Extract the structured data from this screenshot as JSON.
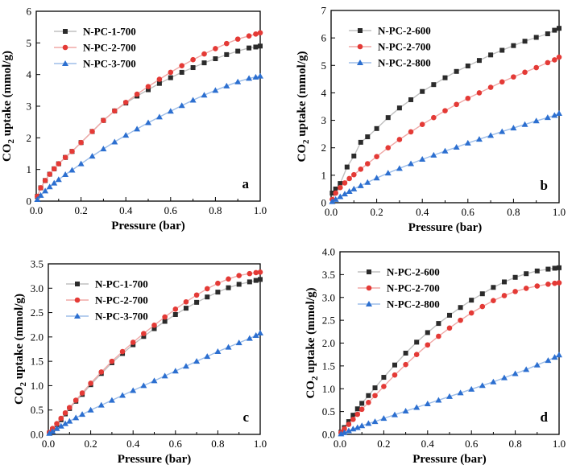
{
  "chart_data": [
    {
      "type": "line",
      "panel_label": "a",
      "xlabel": "Pressure (bar)",
      "ylabel_prefix": "CO",
      "ylabel_sub": "2",
      "ylabel_suffix": " uptake (mmol/g)",
      "xlim": [
        0,
        1
      ],
      "ylim": [
        0,
        6
      ],
      "xticks": [
        "0.0",
        "0.2",
        "0.4",
        "0.6",
        "0.8",
        "1.0"
      ],
      "yticks": [
        "0",
        "1",
        "2",
        "3",
        "4",
        "5",
        "6"
      ],
      "legend_position": "top-left",
      "series": [
        {
          "name": "N-PC-1-700",
          "marker": "square",
          "color": "#2b2b2b",
          "line": "#c0c0c0",
          "x": [
            0.005,
            0.02,
            0.04,
            0.06,
            0.08,
            0.1,
            0.13,
            0.16,
            0.2,
            0.25,
            0.3,
            0.35,
            0.4,
            0.45,
            0.5,
            0.55,
            0.6,
            0.65,
            0.7,
            0.75,
            0.8,
            0.85,
            0.9,
            0.95,
            0.98,
            1.0
          ],
          "y": [
            0.15,
            0.42,
            0.65,
            0.85,
            1.02,
            1.18,
            1.38,
            1.57,
            1.85,
            2.2,
            2.55,
            2.85,
            3.1,
            3.32,
            3.52,
            3.72,
            3.9,
            4.07,
            4.22,
            4.37,
            4.5,
            4.63,
            4.74,
            4.84,
            4.87,
            4.9
          ]
        },
        {
          "name": "N-PC-2-700",
          "marker": "circle",
          "color": "#e43a36",
          "line": "#f0a8a6",
          "x": [
            0.005,
            0.02,
            0.04,
            0.06,
            0.08,
            0.1,
            0.13,
            0.16,
            0.2,
            0.25,
            0.3,
            0.35,
            0.4,
            0.45,
            0.5,
            0.55,
            0.6,
            0.65,
            0.7,
            0.75,
            0.8,
            0.85,
            0.9,
            0.95,
            0.98,
            1.0
          ],
          "y": [
            0.15,
            0.42,
            0.65,
            0.85,
            1.02,
            1.18,
            1.38,
            1.57,
            1.85,
            2.2,
            2.55,
            2.85,
            3.12,
            3.38,
            3.62,
            3.85,
            4.07,
            4.28,
            4.47,
            4.65,
            4.82,
            4.98,
            5.12,
            5.22,
            5.28,
            5.32
          ]
        },
        {
          "name": "N-PC-3-700",
          "marker": "triangle",
          "color": "#2c6fd0",
          "line": "#9dbde8",
          "x": [
            0.005,
            0.02,
            0.04,
            0.06,
            0.08,
            0.1,
            0.13,
            0.16,
            0.2,
            0.25,
            0.3,
            0.35,
            0.4,
            0.45,
            0.5,
            0.55,
            0.6,
            0.65,
            0.7,
            0.75,
            0.8,
            0.85,
            0.9,
            0.95,
            0.98,
            1.0
          ],
          "y": [
            0.05,
            0.18,
            0.32,
            0.45,
            0.57,
            0.68,
            0.84,
            0.98,
            1.18,
            1.42,
            1.65,
            1.87,
            2.08,
            2.28,
            2.48,
            2.66,
            2.84,
            3.02,
            3.19,
            3.35,
            3.5,
            3.64,
            3.77,
            3.88,
            3.92,
            3.95
          ]
        }
      ]
    },
    {
      "type": "line",
      "panel_label": "b",
      "xlabel": "Pressure (bar)",
      "ylabel_prefix": "CO",
      "ylabel_sub": "2",
      "ylabel_suffix": " uptake (mmol/g)",
      "xlim": [
        0,
        1
      ],
      "ylim": [
        0,
        7
      ],
      "xticks": [
        "0.0",
        "0.2",
        "0.4",
        "0.6",
        "0.8",
        "1.0"
      ],
      "yticks": [
        "0",
        "1",
        "2",
        "3",
        "4",
        "5",
        "6",
        "7"
      ],
      "legend_position": "top-left",
      "series": [
        {
          "name": "N-PC-2-600",
          "marker": "square",
          "color": "#2b2b2b",
          "line": "#c0c0c0",
          "x": [
            0.005,
            0.02,
            0.04,
            0.07,
            0.1,
            0.13,
            0.16,
            0.2,
            0.25,
            0.3,
            0.35,
            0.4,
            0.45,
            0.5,
            0.55,
            0.6,
            0.65,
            0.7,
            0.75,
            0.8,
            0.85,
            0.9,
            0.95,
            0.98,
            1.0
          ],
          "y": [
            0.35,
            0.5,
            0.7,
            1.3,
            1.7,
            2.2,
            2.4,
            2.7,
            3.1,
            3.45,
            3.75,
            4.05,
            4.3,
            4.55,
            4.78,
            4.98,
            5.18,
            5.38,
            5.55,
            5.72,
            5.88,
            6.02,
            6.15,
            6.28,
            6.35
          ]
        },
        {
          "name": "N-PC-2-700",
          "marker": "circle",
          "color": "#e43a36",
          "line": "#f0a8a6",
          "x": [
            0.005,
            0.02,
            0.04,
            0.06,
            0.08,
            0.1,
            0.13,
            0.16,
            0.2,
            0.25,
            0.3,
            0.35,
            0.4,
            0.45,
            0.5,
            0.55,
            0.6,
            0.65,
            0.7,
            0.75,
            0.8,
            0.85,
            0.9,
            0.95,
            0.98,
            1.0
          ],
          "y": [
            0.12,
            0.35,
            0.55,
            0.72,
            0.88,
            1.02,
            1.22,
            1.42,
            1.68,
            2.0,
            2.3,
            2.58,
            2.85,
            3.1,
            3.35,
            3.58,
            3.8,
            4.0,
            4.2,
            4.4,
            4.58,
            4.75,
            4.92,
            5.1,
            5.2,
            5.3
          ]
        },
        {
          "name": "N-PC-2-800",
          "marker": "triangle",
          "color": "#2c6fd0",
          "line": "#9dbde8",
          "x": [
            0.005,
            0.02,
            0.04,
            0.06,
            0.08,
            0.1,
            0.13,
            0.16,
            0.2,
            0.25,
            0.3,
            0.35,
            0.4,
            0.45,
            0.5,
            0.55,
            0.6,
            0.65,
            0.7,
            0.75,
            0.8,
            0.85,
            0.9,
            0.95,
            0.98,
            1.0
          ],
          "y": [
            0.04,
            0.12,
            0.22,
            0.32,
            0.41,
            0.5,
            0.62,
            0.74,
            0.9,
            1.08,
            1.25,
            1.42,
            1.58,
            1.73,
            1.88,
            2.02,
            2.17,
            2.31,
            2.45,
            2.59,
            2.72,
            2.85,
            2.98,
            3.1,
            3.18,
            3.25
          ]
        }
      ]
    },
    {
      "type": "line",
      "panel_label": "c",
      "xlabel": "Pressure (bar)",
      "ylabel_prefix": "CO",
      "ylabel_sub": "2",
      "ylabel_suffix": " uptake (mmol/g)",
      "xlim": [
        0,
        1
      ],
      "ylim": [
        0,
        3.5
      ],
      "xticks": [
        "0.0",
        "0.2",
        "0.4",
        "0.6",
        "0.8",
        "1.0"
      ],
      "yticks": [
        "0.0",
        "0.5",
        "1.0",
        "1.5",
        "2.0",
        "2.5",
        "3.0",
        "3.5"
      ],
      "legend_position": "top-left",
      "series": [
        {
          "name": "N-PC-1-700",
          "marker": "square",
          "color": "#2b2b2b",
          "line": "#c0c0c0",
          "x": [
            0.005,
            0.02,
            0.04,
            0.06,
            0.08,
            0.1,
            0.13,
            0.16,
            0.2,
            0.25,
            0.3,
            0.35,
            0.4,
            0.45,
            0.5,
            0.55,
            0.6,
            0.65,
            0.7,
            0.75,
            0.8,
            0.85,
            0.9,
            0.95,
            0.98,
            1.0
          ],
          "y": [
            0.03,
            0.1,
            0.2,
            0.3,
            0.42,
            0.53,
            0.68,
            0.82,
            1.02,
            1.25,
            1.47,
            1.66,
            1.84,
            2.01,
            2.17,
            2.32,
            2.46,
            2.59,
            2.71,
            2.82,
            2.92,
            3.01,
            3.08,
            3.13,
            3.16,
            3.18
          ]
        },
        {
          "name": "N-PC-2-700",
          "marker": "circle",
          "color": "#e43a36",
          "line": "#f0a8a6",
          "x": [
            0.005,
            0.02,
            0.04,
            0.06,
            0.08,
            0.1,
            0.13,
            0.16,
            0.2,
            0.25,
            0.3,
            0.35,
            0.4,
            0.45,
            0.5,
            0.55,
            0.6,
            0.65,
            0.7,
            0.75,
            0.8,
            0.85,
            0.9,
            0.95,
            0.98,
            1.0
          ],
          "y": [
            0.04,
            0.12,
            0.22,
            0.33,
            0.44,
            0.55,
            0.7,
            0.85,
            1.05,
            1.28,
            1.5,
            1.7,
            1.89,
            2.07,
            2.24,
            2.41,
            2.57,
            2.72,
            2.86,
            2.99,
            3.1,
            3.19,
            3.26,
            3.3,
            3.32,
            3.33
          ]
        },
        {
          "name": "N-PC-3-700",
          "marker": "triangle",
          "color": "#2c6fd0",
          "line": "#9dbde8",
          "x": [
            0.005,
            0.02,
            0.04,
            0.06,
            0.08,
            0.1,
            0.13,
            0.16,
            0.2,
            0.25,
            0.3,
            0.35,
            0.4,
            0.45,
            0.5,
            0.55,
            0.6,
            0.65,
            0.7,
            0.75,
            0.8,
            0.85,
            0.9,
            0.95,
            0.98,
            1.0
          ],
          "y": [
            0.02,
            0.06,
            0.12,
            0.17,
            0.22,
            0.27,
            0.34,
            0.41,
            0.5,
            0.6,
            0.7,
            0.8,
            0.9,
            1.0,
            1.1,
            1.2,
            1.3,
            1.4,
            1.5,
            1.6,
            1.7,
            1.79,
            1.88,
            1.97,
            2.03,
            2.08
          ]
        }
      ]
    },
    {
      "type": "line",
      "panel_label": "d",
      "xlabel": "Pressure (bar)",
      "ylabel_prefix": "CO",
      "ylabel_sub": "2",
      "ylabel_suffix": " uptake (mmol/g)",
      "xlim": [
        0,
        1
      ],
      "ylim": [
        0,
        4
      ],
      "xticks": [
        "0.0",
        "0.2",
        "0.4",
        "0.6",
        "0.8",
        "1.0"
      ],
      "yticks": [
        "0.0",
        "0.5",
        "1.0",
        "1.5",
        "2.0",
        "2.5",
        "3.0",
        "3.5",
        "4.0"
      ],
      "legend_position": "top-left",
      "series": [
        {
          "name": "N-PC-2-600",
          "marker": "square",
          "color": "#2b2b2b",
          "line": "#c0c0c0",
          "x": [
            0.005,
            0.02,
            0.04,
            0.06,
            0.08,
            0.1,
            0.13,
            0.16,
            0.2,
            0.25,
            0.3,
            0.35,
            0.4,
            0.45,
            0.5,
            0.55,
            0.6,
            0.65,
            0.7,
            0.75,
            0.8,
            0.85,
            0.9,
            0.95,
            0.98,
            1.0
          ],
          "y": [
            0.05,
            0.15,
            0.28,
            0.42,
            0.56,
            0.68,
            0.85,
            1.02,
            1.25,
            1.52,
            1.78,
            2.02,
            2.23,
            2.43,
            2.61,
            2.78,
            2.94,
            3.08,
            3.22,
            3.34,
            3.44,
            3.52,
            3.58,
            3.62,
            3.64,
            3.65
          ]
        },
        {
          "name": "N-PC-2-700",
          "marker": "circle",
          "color": "#e43a36",
          "line": "#f0a8a6",
          "x": [
            0.005,
            0.02,
            0.04,
            0.06,
            0.08,
            0.1,
            0.13,
            0.16,
            0.2,
            0.25,
            0.3,
            0.35,
            0.4,
            0.45,
            0.5,
            0.55,
            0.6,
            0.65,
            0.7,
            0.75,
            0.8,
            0.85,
            0.9,
            0.95,
            0.98,
            1.0
          ],
          "y": [
            0.04,
            0.12,
            0.22,
            0.33,
            0.44,
            0.55,
            0.7,
            0.85,
            1.05,
            1.3,
            1.53,
            1.75,
            1.96,
            2.15,
            2.33,
            2.5,
            2.66,
            2.8,
            2.93,
            3.04,
            3.13,
            3.2,
            3.25,
            3.29,
            3.31,
            3.32
          ]
        },
        {
          "name": "N-PC-2-800",
          "marker": "triangle",
          "color": "#2c6fd0",
          "line": "#9dbde8",
          "x": [
            0.005,
            0.02,
            0.04,
            0.06,
            0.08,
            0.1,
            0.13,
            0.16,
            0.2,
            0.25,
            0.3,
            0.35,
            0.4,
            0.45,
            0.5,
            0.55,
            0.6,
            0.65,
            0.7,
            0.75,
            0.8,
            0.85,
            0.9,
            0.95,
            0.98,
            1.0
          ],
          "y": [
            0.01,
            0.04,
            0.08,
            0.12,
            0.15,
            0.19,
            0.24,
            0.28,
            0.35,
            0.43,
            0.51,
            0.59,
            0.67,
            0.75,
            0.83,
            0.91,
            0.99,
            1.07,
            1.15,
            1.24,
            1.33,
            1.42,
            1.52,
            1.62,
            1.69,
            1.74
          ]
        }
      ]
    }
  ]
}
